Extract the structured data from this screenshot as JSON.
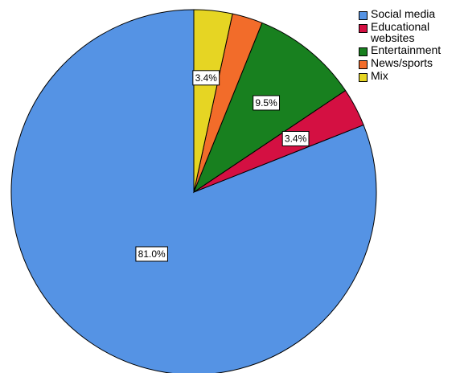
{
  "chart_data": {
    "type": "pie",
    "title": "",
    "start_angle_deg": 0,
    "direction": "clockwise",
    "legend_position": "top-right",
    "slices": [
      {
        "name": "Social media",
        "value": 81.0,
        "label": "81.0%",
        "color": "#5593E4"
      },
      {
        "name": "Educational websites",
        "value": 3.4,
        "label": "3.4%",
        "color": "#D41042"
      },
      {
        "name": "Entertainment",
        "value": 9.5,
        "label": "9.5%",
        "color": "#18801F"
      },
      {
        "name": "News/sports",
        "value": 2.7,
        "label": "",
        "color": "#F26C2A"
      },
      {
        "name": "Mix",
        "value": 3.4,
        "label": "3.4%",
        "color": "#E6D523"
      }
    ]
  }
}
